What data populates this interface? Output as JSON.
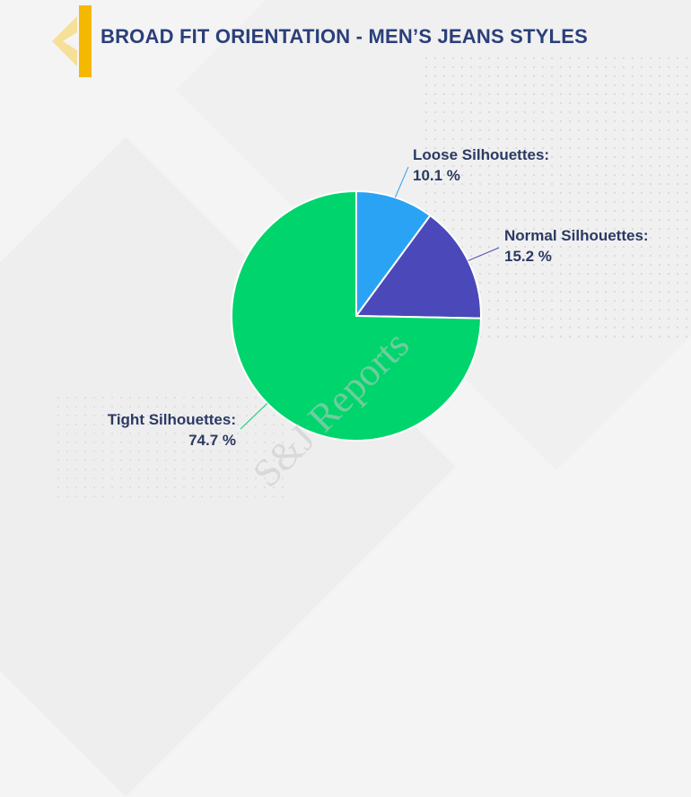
{
  "page": {
    "title": "BROAD FIT ORIENTATION - MEN’S JEANS STYLES"
  },
  "watermark": "S&J Reports",
  "colors": {
    "accent": "#f5b800",
    "title": "#2a3f7a",
    "label": "#2b3a63"
  },
  "chart_data": {
    "type": "pie",
    "title": "BROAD FIT ORIENTATION - MEN’S JEANS STYLES",
    "slices": [
      {
        "label": "Loose Silhouettes:",
        "value": 10.1,
        "value_text": "10.1 %",
        "color": "#2aa3f5"
      },
      {
        "label": "Normal Silhouettes:",
        "value": 15.2,
        "value_text": "15.2 %",
        "color": "#4b48b9"
      },
      {
        "label": "Tight Silhouettes:",
        "value": 74.7,
        "value_text": "74.7 %",
        "color": "#00d46c"
      }
    ]
  }
}
